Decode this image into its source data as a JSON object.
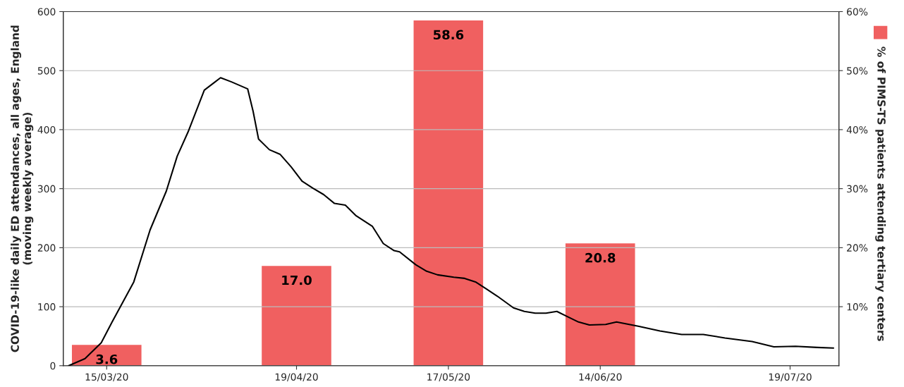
{
  "chart_data": {
    "type": "line",
    "ylabel": "COVID-19-like daily ED attendances, all ages, England (moving weekly average)",
    "xlim": [
      "2020-03-07",
      "2020-07-28"
    ],
    "xticks": [
      {
        "value": "2020-03-15",
        "label": "15/03/20"
      },
      {
        "value": "2020-04-19",
        "label": "19/04/20"
      },
      {
        "value": "2020-05-17",
        "label": "17/05/20"
      },
      {
        "value": "2020-06-14",
        "label": "14/06/20"
      },
      {
        "value": "2020-07-19",
        "label": "19/07/20"
      }
    ],
    "ylim": [
      0,
      600
    ],
    "yticks": [
      0,
      100,
      200,
      300,
      400,
      500,
      600
    ],
    "y2lim": [
      0,
      60
    ],
    "y2ticks": [
      {
        "value": 10,
        "label": "10%"
      },
      {
        "value": 20,
        "label": "20%"
      },
      {
        "value": 30,
        "label": "30%"
      },
      {
        "value": 40,
        "label": "40%"
      },
      {
        "value": 50,
        "label": "50%"
      },
      {
        "value": 60,
        "label": "60%"
      }
    ],
    "grid": "y",
    "legend": "right",
    "series": [
      {
        "type": "bar",
        "axis": "y2",
        "name": "% of PIMS-TS patients attending tertiary centers",
        "color": "#f06060",
        "x": [
          "2020-03-15",
          "2020-04-19",
          "2020-05-17",
          "2020-06-14"
        ],
        "values": [
          3.6,
          17.0,
          58.6,
          20.8
        ],
        "value_labels": [
          "3.6",
          "17.0",
          "58.6",
          "20.8"
        ]
      },
      {
        "color": "#000000",
        "marker": "none",
        "line_style": "solid",
        "x": [
          "2020-03-08",
          "2020-03-11",
          "2020-03-14",
          "2020-03-16",
          "2020-03-20",
          "2020-03-23",
          "2020-03-26",
          "2020-03-28",
          "2020-03-30",
          "2020-04-02",
          "2020-04-04",
          "2020-04-05",
          "2020-04-07",
          "2020-04-10",
          "2020-04-11",
          "2020-04-12",
          "2020-04-14",
          "2020-04-16",
          "2020-04-18",
          "2020-04-20",
          "2020-04-22",
          "2020-04-24",
          "2020-04-26",
          "2020-04-28",
          "2020-04-30",
          "2020-05-03",
          "2020-05-05",
          "2020-05-07",
          "2020-05-08",
          "2020-05-11",
          "2020-05-13",
          "2020-05-15",
          "2020-05-18",
          "2020-05-20",
          "2020-05-22",
          "2020-05-24",
          "2020-05-26",
          "2020-05-29",
          "2020-05-31",
          "2020-06-02",
          "2020-06-04",
          "2020-06-06",
          "2020-06-08",
          "2020-06-10",
          "2020-06-12",
          "2020-06-15",
          "2020-06-17",
          "2020-06-21",
          "2020-06-25",
          "2020-06-29",
          "2020-07-03",
          "2020-07-07",
          "2020-07-12",
          "2020-07-16",
          "2020-07-20",
          "2020-07-24",
          "2020-07-27"
        ],
        "values": [
          0,
          12,
          39,
          74,
          142,
          230,
          296,
          355,
          396,
          467,
          481,
          488,
          481,
          469,
          431,
          384,
          366,
          358,
          337,
          313,
          301,
          290,
          275,
          272,
          254,
          236,
          207,
          195,
          193,
          171,
          160,
          154,
          150,
          148,
          142,
          130,
          118,
          98,
          92,
          89,
          89,
          92,
          83,
          74,
          69,
          70,
          74,
          67,
          59,
          53,
          53,
          47,
          41,
          32,
          33,
          31,
          30
        ]
      }
    ]
  }
}
